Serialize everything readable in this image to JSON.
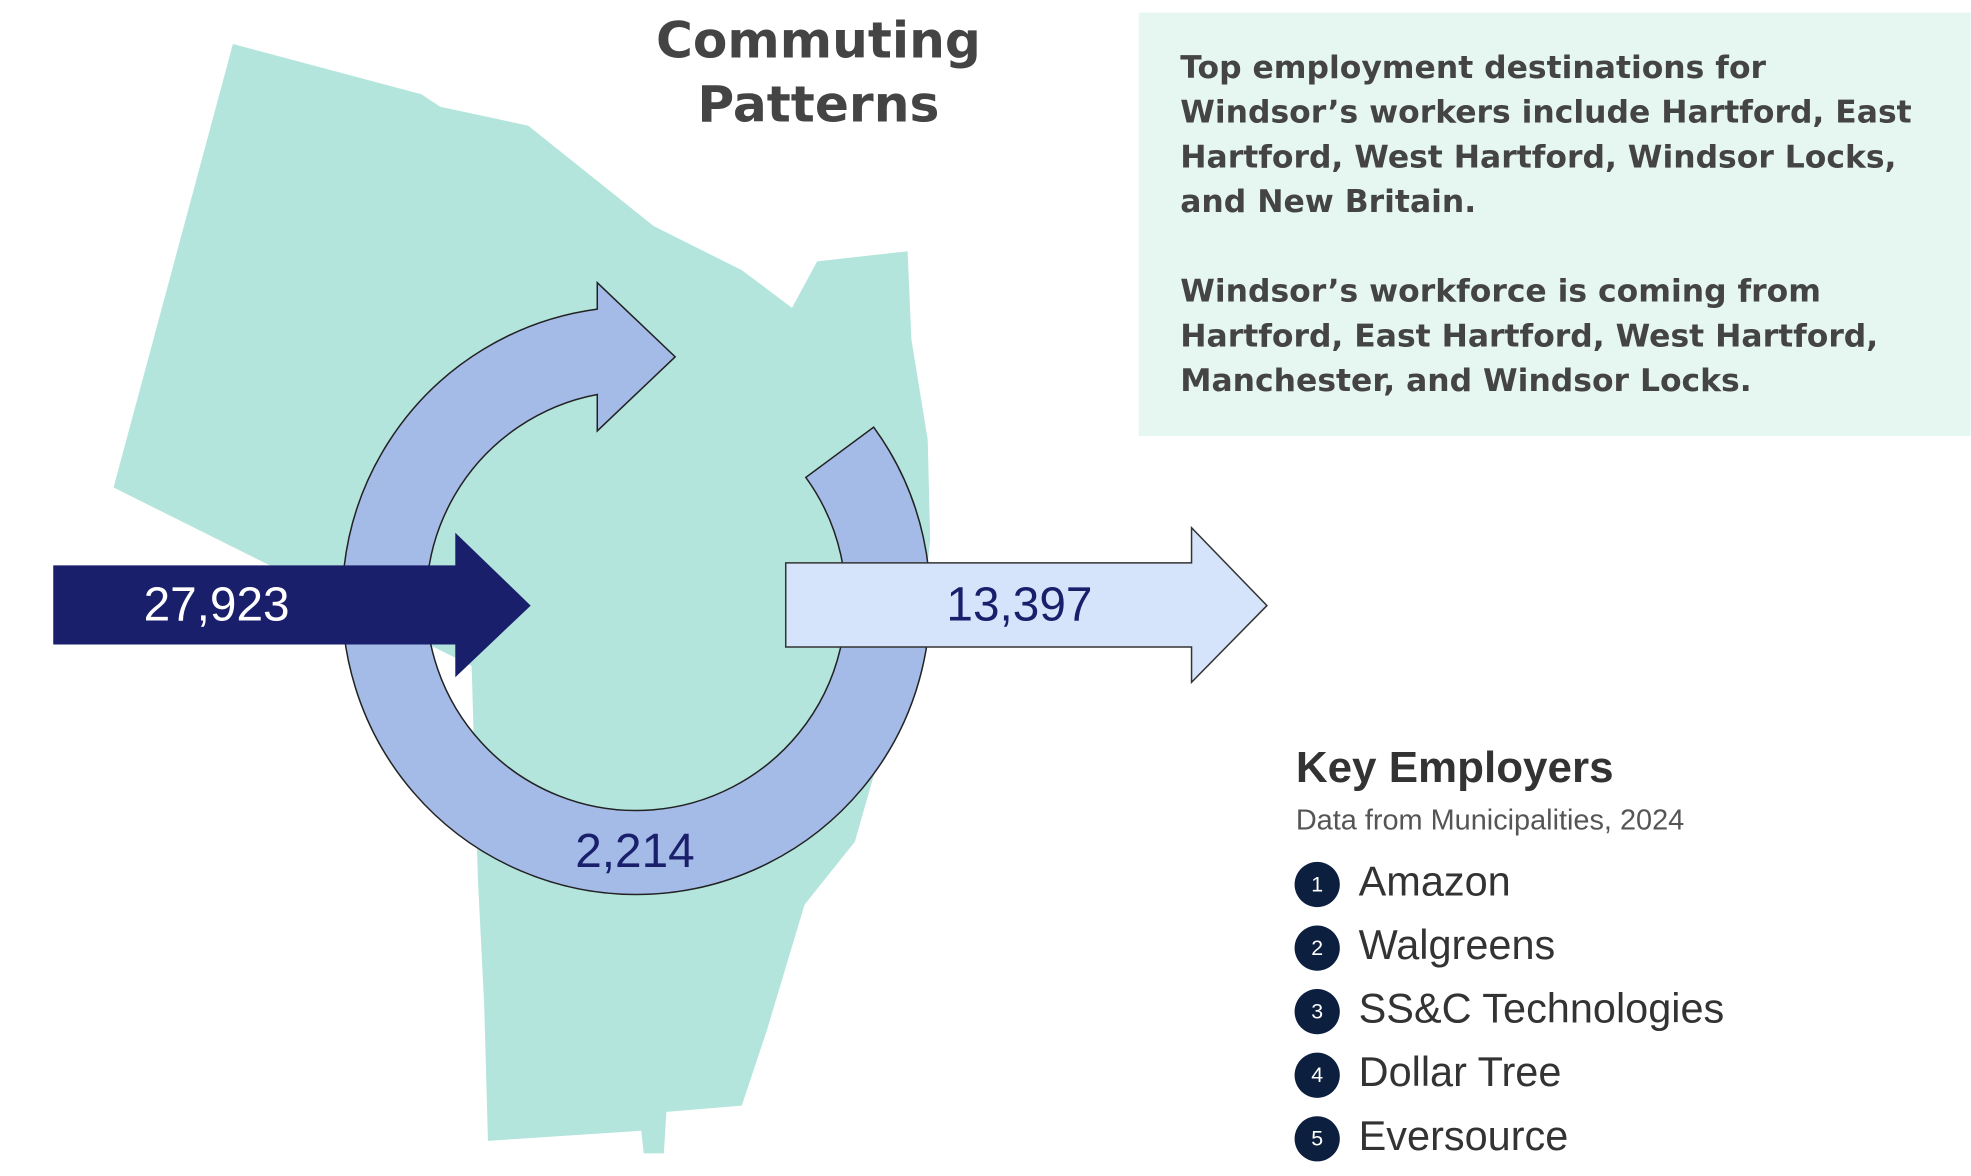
{
  "title_lines": [
    "Commuting",
    "Patterns"
  ],
  "flows": {
    "inbound": "27,923",
    "outbound": "13,397",
    "internal": "2,214"
  },
  "info": {
    "paragraphs": [
      [
        "Top employment destinations for",
        "Windsor’s workers include Hartford, East",
        "Hartford, West Hartford, Windsor Locks,",
        "and New Britain."
      ],
      [
        "Windsor’s workforce is coming from",
        "Hartford, East Hartford, West Hartford,",
        "Manchester, and Windsor Locks."
      ]
    ]
  },
  "employers": {
    "title": "Key Employers",
    "subtitle": "Data from Municipalities, 2024",
    "items": [
      {
        "rank": "1",
        "name": "Amazon"
      },
      {
        "rank": "2",
        "name": "Walgreens"
      },
      {
        "rank": "3",
        "name": "SS&C Technologies"
      },
      {
        "rank": "4",
        "name": "Dollar Tree"
      },
      {
        "rank": "5",
        "name": "Eversource"
      }
    ]
  }
}
